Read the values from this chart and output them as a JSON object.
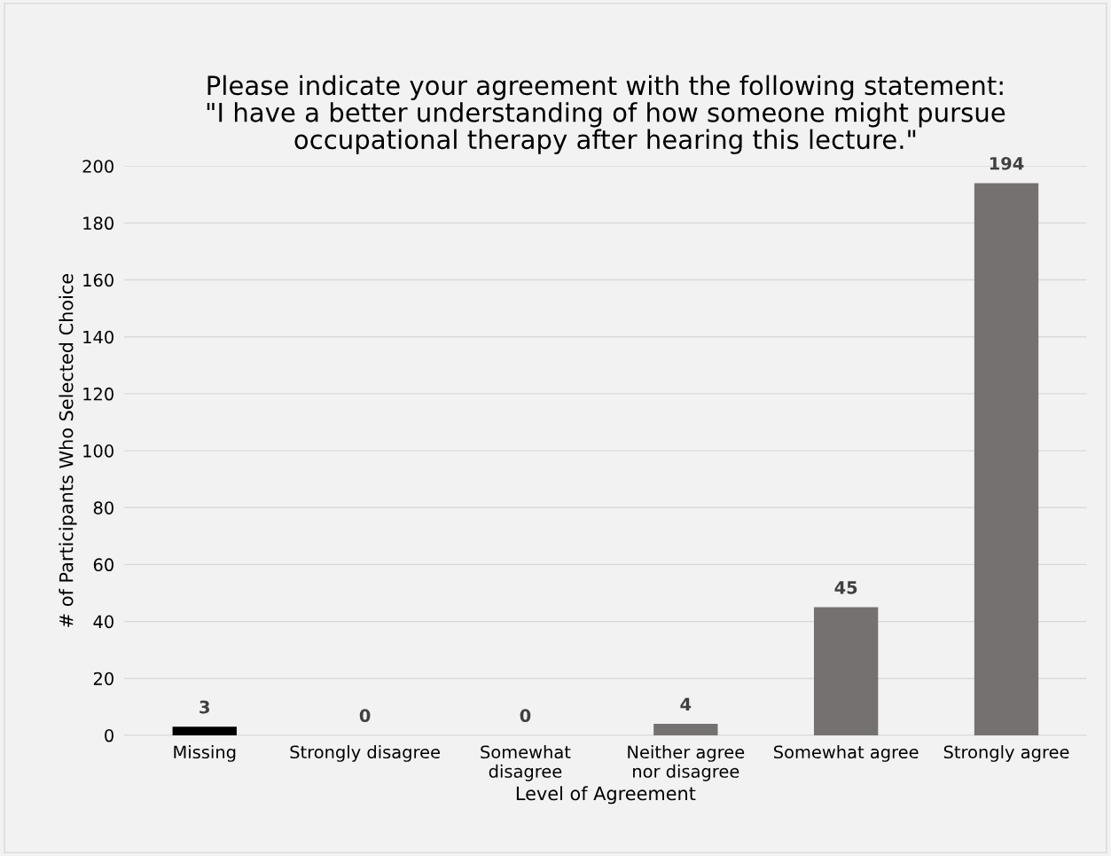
{
  "chart_data": {
    "type": "bar",
    "title": "Please indicate your agreement with the following statement:\n\"I have a better understanding of how someone might pursue\noccupational therapy after hearing this lecture.\"",
    "xlabel": "Level of Agreement",
    "ylabel": "# of Participants Who Selected Choice",
    "categories": [
      "Missing",
      "Strongly disagree",
      "Somewhat\ndisagree",
      "Neither agree\nnor disagree",
      "Somewhat agree",
      "Strongly agree"
    ],
    "values": [
      3,
      0,
      0,
      4,
      45,
      194
    ],
    "colors": [
      "#000000",
      "#767171",
      "#767171",
      "#767171",
      "#767171",
      "#767171"
    ],
    "ylim": [
      0,
      200
    ],
    "yticks": [
      0,
      20,
      40,
      60,
      80,
      100,
      120,
      140,
      160,
      180,
      200
    ],
    "grid": "y",
    "data_labels": true
  }
}
